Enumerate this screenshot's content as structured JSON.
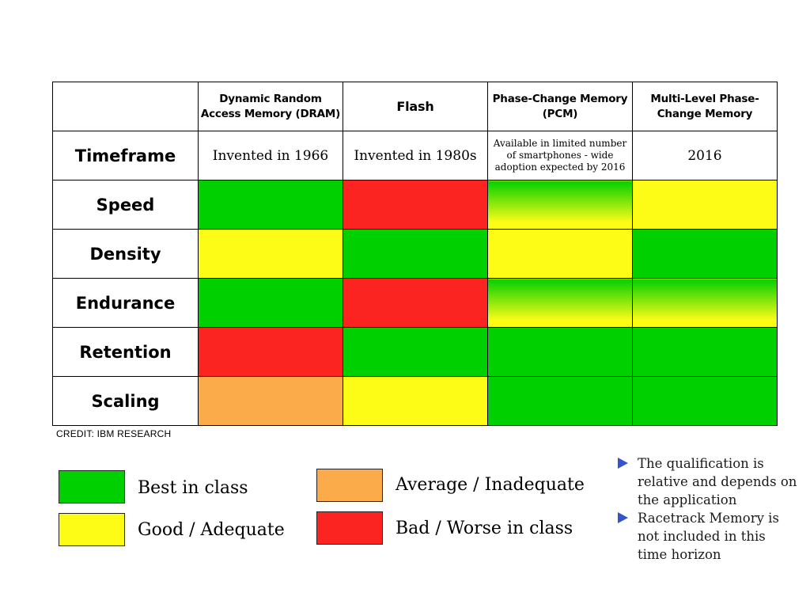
{
  "table": {
    "columns": [
      "Dynamic Random Access Memory (DRAM)",
      "Flash",
      "Phase-Change Memory (PCM)",
      "Multi-Level Phase-Change Memory"
    ],
    "timeframe": {
      "label": "Timeframe",
      "values": [
        "Invented in 1966",
        "Invented in 1980s",
        "Available in limited number of smartphones - wide adoption expected by 2016",
        "2016"
      ]
    },
    "rows": [
      {
        "label": "Speed",
        "ratings": [
          "best",
          "bad",
          "best-to-good",
          "good"
        ]
      },
      {
        "label": "Density",
        "ratings": [
          "good",
          "best",
          "good",
          "best"
        ]
      },
      {
        "label": "Endurance",
        "ratings": [
          "best",
          "bad",
          "best-to-good",
          "best-to-good"
        ]
      },
      {
        "label": "Retention",
        "ratings": [
          "bad",
          "best",
          "best",
          "best"
        ]
      },
      {
        "label": "Scaling",
        "ratings": [
          "average",
          "good",
          "best",
          "best"
        ]
      }
    ]
  },
  "credit": "CREDIT: IBM RESEARCH",
  "legend": {
    "best": {
      "label": "Best in class",
      "color": "#00d000"
    },
    "good": {
      "label": "Good / Adequate",
      "color": "#fcfc17"
    },
    "average": {
      "label": "Average / Inadequate",
      "color": "#fbab4a"
    },
    "bad": {
      "label": "Bad / Worse in class",
      "color": "#fb2421"
    }
  },
  "notes": [
    "The qualification is relative and depends on the application",
    "Racetrack Memory is not included in this time horizon"
  ]
}
